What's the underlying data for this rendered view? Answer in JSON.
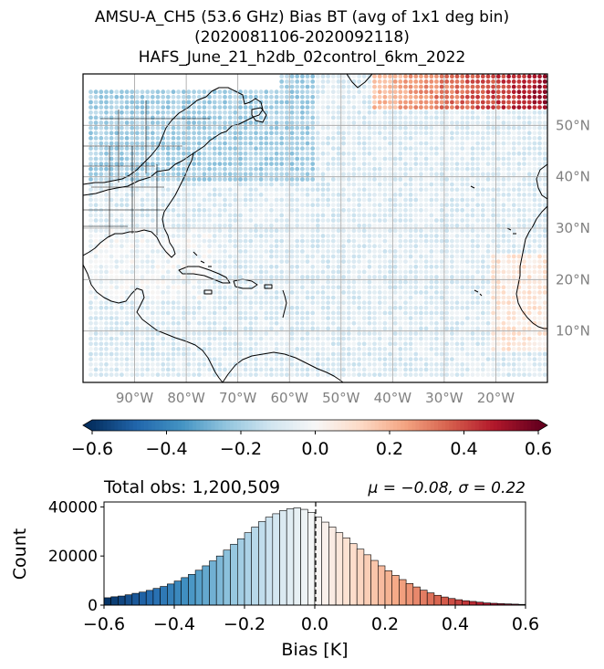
{
  "title_lines": [
    "AMSU-A_CH5 (53.6 GHz) Bias BT (avg of 1x1 deg bin)",
    "(2020081106-2020092118)",
    "HAFS_June_21_h2db_02control_6km_2022"
  ],
  "colors": {
    "cmap": [
      "#053061",
      "#2166ac",
      "#4393c3",
      "#92c5de",
      "#d1e5f0",
      "#f7f7f7",
      "#fddbc7",
      "#f4a582",
      "#d6604d",
      "#b2182b",
      "#67001f"
    ],
    "axis_label_gray": "#808080",
    "grid": "#a0a0a0",
    "land_outline": "#000000"
  },
  "chart_data": [
    {
      "type": "scatter",
      "description_kind": "map",
      "lon_range": [
        -100,
        -10
      ],
      "lat_range": [
        0,
        60
      ],
      "lon_ticks": [
        -90,
        -80,
        -70,
        -60,
        -50,
        -40,
        -30,
        -20
      ],
      "lon_tick_labels": [
        "90°W",
        "80°W",
        "70°W",
        "60°W",
        "50°W",
        "40°W",
        "30°W",
        "20°W"
      ],
      "lat_ticks": [
        10,
        20,
        30,
        40,
        50
      ],
      "lat_tick_labels": [
        "10°N",
        "20°N",
        "30°N",
        "40°N",
        "50°N"
      ],
      "bin_size_deg": 1,
      "grid": true
    },
    {
      "type": "colorbar",
      "range": [
        -0.6,
        0.6
      ],
      "ticks": [
        -0.6,
        -0.4,
        -0.2,
        0.0,
        0.2,
        0.4,
        0.6
      ],
      "tick_labels": [
        "−0.6",
        "−0.4",
        "−0.2",
        "0.0",
        "0.2",
        "0.4",
        "0.6"
      ],
      "extend": "both"
    },
    {
      "type": "bar",
      "title_left": "Total obs: 1,200,509",
      "title_right": "μ = −0.08, σ = 0.22",
      "xlabel": "Bias [K]",
      "ylabel": "Count",
      "xlim": [
        -0.6,
        0.6
      ],
      "ylim": [
        0,
        42000
      ],
      "x_ticks": [
        -0.6,
        -0.4,
        -0.2,
        0.0,
        0.2,
        0.4,
        0.6
      ],
      "x_tick_labels": [
        "−0.6",
        "−0.4",
        "−0.2",
        "0.0",
        "0.2",
        "0.4",
        "0.6"
      ],
      "y_ticks": [
        0,
        20000,
        40000
      ],
      "y_tick_labels": [
        "0",
        "20000",
        "40000"
      ],
      "bin_width": 0.02,
      "reference_line_x": 0.0,
      "bin_starts": [
        -0.6,
        -0.58,
        -0.56,
        -0.54,
        -0.52,
        -0.5,
        -0.48,
        -0.46,
        -0.44,
        -0.42,
        -0.4,
        -0.38,
        -0.36,
        -0.34,
        -0.32,
        -0.3,
        -0.28,
        -0.26,
        -0.24,
        -0.22,
        -0.2,
        -0.18,
        -0.16,
        -0.14,
        -0.12,
        -0.1,
        -0.08,
        -0.06,
        -0.04,
        -0.02,
        0.0,
        0.02,
        0.04,
        0.06,
        0.08,
        0.1,
        0.12,
        0.14,
        0.16,
        0.18,
        0.2,
        0.22,
        0.24,
        0.26,
        0.28,
        0.3,
        0.32,
        0.34,
        0.36,
        0.38,
        0.4,
        0.42,
        0.44,
        0.46,
        0.48,
        0.5,
        0.52,
        0.54,
        0.56,
        0.58
      ],
      "values": [
        3000,
        3400,
        3700,
        4200,
        4800,
        5300,
        6000,
        6800,
        7600,
        8600,
        9800,
        11200,
        12500,
        14200,
        16000,
        18000,
        20000,
        22400,
        24800,
        27000,
        29500,
        31800,
        34000,
        35800,
        37200,
        38500,
        39200,
        39600,
        39000,
        37800,
        35800,
        33800,
        31800,
        29500,
        27400,
        25000,
        22800,
        20500,
        18200,
        16000,
        14000,
        12100,
        10400,
        8800,
        7400,
        6100,
        5000,
        4000,
        3300,
        2700,
        2200,
        1800,
        1500,
        1200,
        900,
        750,
        600,
        500,
        400,
        300
      ]
    }
  ]
}
